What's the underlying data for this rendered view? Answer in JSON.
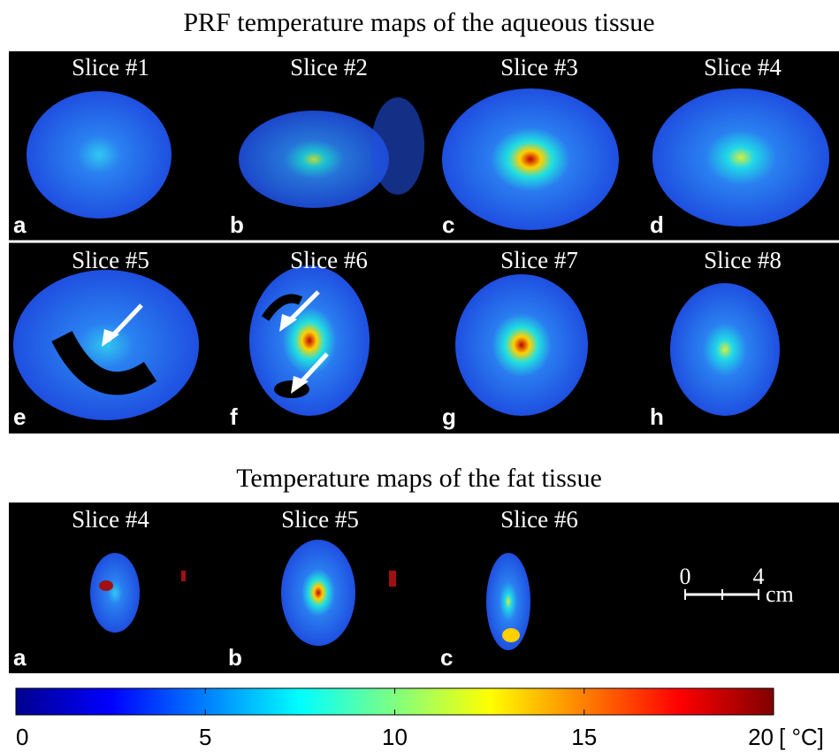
{
  "title": "PRF temperature maps of the aqueous tissue",
  "panels": [
    {
      "label": "Slice #1",
      "letter": "a"
    },
    {
      "label": "Slice #2",
      "letter": "b"
    },
    {
      "label": "Slice #3",
      "letter": "c"
    },
    {
      "label": "Slice #4",
      "letter": "d"
    },
    {
      "label": "Slice #5",
      "letter": "e"
    },
    {
      "label": "Slice #6",
      "letter": "f"
    },
    {
      "label": "Slice #7",
      "letter": "g"
    },
    {
      "label": "Slice #8",
      "letter": "h"
    }
  ],
  "fat_title": "Temperature maps of the fat tissue",
  "fat_panels": [
    {
      "label": "Slice #4",
      "letter": "a"
    },
    {
      "label": "Slice #5",
      "letter": "b"
    },
    {
      "label": "Slice #6",
      "letter": "c"
    }
  ],
  "scale_bar": {
    "start": "0",
    "end": "4",
    "unit": "cm"
  },
  "colorbar": {
    "lim": [
      0,
      20
    ],
    "ticks": [
      0,
      5,
      10,
      15,
      20
    ],
    "unit": "[ °C]"
  }
}
